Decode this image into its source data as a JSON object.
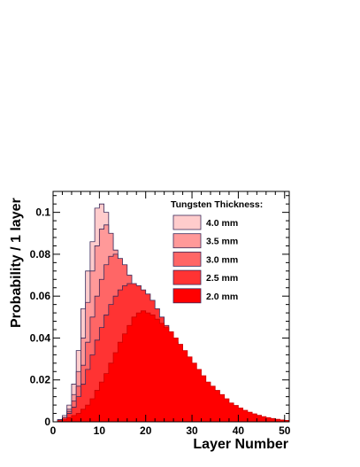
{
  "chart_data": {
    "type": "area",
    "title": "",
    "xlabel": "Layer Number",
    "ylabel": "Probability / 1 layer",
    "xlim": [
      0,
      51
    ],
    "ylim": [
      0,
      0.11
    ],
    "x_ticks": [
      0,
      10,
      20,
      30,
      40,
      50
    ],
    "y_ticks": [
      0,
      0.02,
      0.04,
      0.06,
      0.08,
      0.1
    ],
    "y_tick_labels": [
      "0",
      "0.02",
      "0.04",
      "0.06",
      "0.08",
      "0.1"
    ],
    "grid": false,
    "legend": {
      "title": "Tungsten Thickness:",
      "placement": "top-right",
      "entries": [
        "4.0 mm",
        "3.5 mm",
        "3.0 mm",
        "2.5 mm",
        "2.0 mm"
      ]
    },
    "bin_width": 1,
    "series": [
      {
        "name": "4.0 mm",
        "color": "#ffcccc",
        "values": [
          0.0,
          0.001,
          0.003,
          0.008,
          0.018,
          0.034,
          0.054,
          0.072,
          0.086,
          0.102,
          0.104,
          0.1,
          0.088,
          0.078,
          0.068,
          0.056,
          0.046,
          0.037,
          0.029,
          0.022,
          0.017,
          0.012,
          0.009,
          0.0065,
          0.0048,
          0.0035,
          0.0024,
          0.0016,
          0.0011,
          0.0008,
          0.0005,
          0.0004,
          0.0003,
          0.0002,
          0.0002,
          0.0001,
          0.0001,
          0.0001,
          0,
          0,
          0,
          0,
          0,
          0,
          0,
          0,
          0,
          0,
          0,
          0,
          0
        ]
      },
      {
        "name": "3.5 mm",
        "color": "#ff9999",
        "values": [
          0.0,
          0.001,
          0.002,
          0.006,
          0.013,
          0.024,
          0.04,
          0.057,
          0.072,
          0.084,
          0.092,
          0.094,
          0.09,
          0.082,
          0.075,
          0.067,
          0.058,
          0.05,
          0.042,
          0.034,
          0.028,
          0.022,
          0.018,
          0.014,
          0.011,
          0.008,
          0.006,
          0.0044,
          0.0032,
          0.0023,
          0.0016,
          0.0011,
          0.0008,
          0.0006,
          0.0004,
          0.0003,
          0.0002,
          0.0001,
          0.0001,
          0.0001,
          0,
          0,
          0,
          0,
          0,
          0,
          0,
          0,
          0,
          0,
          0
        ]
      },
      {
        "name": "3.0 mm",
        "color": "#ff6666",
        "values": [
          0.0,
          0.001,
          0.002,
          0.005,
          0.01,
          0.017,
          0.027,
          0.038,
          0.05,
          0.06,
          0.068,
          0.075,
          0.079,
          0.08,
          0.078,
          0.075,
          0.07,
          0.065,
          0.059,
          0.053,
          0.047,
          0.041,
          0.036,
          0.031,
          0.026,
          0.022,
          0.018,
          0.015,
          0.012,
          0.0095,
          0.0075,
          0.0058,
          0.0045,
          0.0035,
          0.0027,
          0.002,
          0.0015,
          0.0011,
          0.0008,
          0.0006,
          0.0004,
          0.0003,
          0.0002,
          0.0002,
          0.0001,
          0.0001,
          0,
          0,
          0,
          0,
          0
        ]
      },
      {
        "name": "2.5 mm",
        "color": "#ff3333",
        "values": [
          0.0,
          0.001,
          0.002,
          0.004,
          0.007,
          0.012,
          0.018,
          0.025,
          0.032,
          0.039,
          0.045,
          0.051,
          0.056,
          0.06,
          0.063,
          0.065,
          0.066,
          0.066,
          0.065,
          0.063,
          0.061,
          0.058,
          0.054,
          0.05,
          0.046,
          0.042,
          0.038,
          0.034,
          0.03,
          0.026,
          0.023,
          0.02,
          0.017,
          0.014,
          0.012,
          0.01,
          0.008,
          0.0066,
          0.0053,
          0.0042,
          0.0033,
          0.0026,
          0.002,
          0.0015,
          0.0012,
          0.0009,
          0.0007,
          0.0005,
          0.0004,
          0.0003,
          0.0002
        ]
      },
      {
        "name": "2.0 mm",
        "color": "#ff0000",
        "values": [
          0.0,
          0.0005,
          0.001,
          0.002,
          0.003,
          0.004,
          0.006,
          0.008,
          0.011,
          0.015,
          0.019,
          0.023,
          0.028,
          0.033,
          0.038,
          0.042,
          0.046,
          0.05,
          0.052,
          0.053,
          0.052,
          0.051,
          0.049,
          0.047,
          0.045,
          0.043,
          0.04,
          0.037,
          0.034,
          0.031,
          0.028,
          0.025,
          0.022,
          0.019,
          0.017,
          0.015,
          0.013,
          0.011,
          0.009,
          0.0078,
          0.0066,
          0.0055,
          0.0046,
          0.0038,
          0.0031,
          0.0025,
          0.002,
          0.0016,
          0.0012,
          0.0009,
          0.0007
        ]
      }
    ]
  }
}
